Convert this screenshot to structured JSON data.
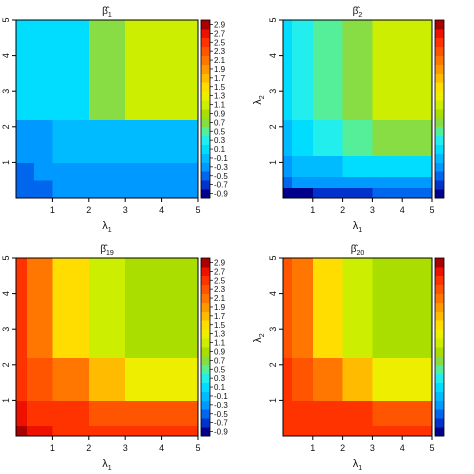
{
  "colorbar": {
    "colors": [
      "#00008b",
      "#0033cc",
      "#0066ee",
      "#0099ff",
      "#00bbff",
      "#00ddff",
      "#22eeee",
      "#55ee99",
      "#88dd44",
      "#aadd00",
      "#ccee00",
      "#eeee00",
      "#ffdd00",
      "#ffbb00",
      "#ff9900",
      "#ff7700",
      "#ff5500",
      "#ff3300",
      "#ee1100",
      "#aa0000"
    ],
    "tick_labels": [
      "-0.9",
      "-0.7",
      "-0.5",
      "-0.3",
      "-0.1",
      "0.1",
      "0.3",
      "0.5",
      "0.7",
      "0.9",
      "1.1",
      "1.3",
      "1.5",
      "1.7",
      "1.9",
      "2.1",
      "2.3",
      "2.5",
      "2.7",
      "2.9"
    ],
    "range": [
      -1.0,
      3.0
    ]
  },
  "chart_data": [
    {
      "type": "heatmap",
      "title_base": "β̂",
      "title_sub": "1",
      "xlabel_base": "λ",
      "xlabel_sub": "1",
      "ylabel_base": "",
      "ylabel_sub": "",
      "x_ticks": [
        "1",
        "2",
        "3",
        "4",
        "5"
      ],
      "y_ticks": [
        "1",
        "2",
        "3",
        "4",
        "5"
      ],
      "xlim": [
        0,
        5
      ],
      "ylim": [
        0,
        5
      ],
      "field": {
        "x_breaks": [
          0.5,
          1.0,
          2.0,
          3.0
        ],
        "y_breaks": [
          0.5,
          1.0,
          2.2
        ],
        "values": [
          [
            -0.5,
            -0.5,
            -0.4,
            -0.35,
            -0.3
          ],
          [
            -0.45,
            -0.4,
            -0.35,
            -0.3,
            -0.25
          ],
          [
            -0.3,
            -0.25,
            -0.2,
            -0.15,
            -0.1
          ],
          [
            0.0,
            0.05,
            0.1,
            0.6,
            1.0
          ]
        ]
      },
      "show_colorbar": true,
      "colorbar_labels": true
    },
    {
      "type": "heatmap",
      "title_base": "β̂",
      "title_sub": "2",
      "xlabel_base": "λ",
      "xlabel_sub": "1",
      "ylabel_base": "λ",
      "ylabel_sub": "2",
      "x_ticks": [
        "1",
        "2",
        "3",
        "4",
        "5"
      ],
      "y_ticks": [
        "1",
        "2",
        "3",
        "4",
        "5"
      ],
      "xlim": [
        0,
        5
      ],
      "ylim": [
        0,
        5
      ],
      "field": {
        "x_breaks": [
          0.3,
          1.0,
          2.0,
          3.0
        ],
        "y_breaks": [
          0.3,
          0.6,
          1.2,
          2.2
        ],
        "values": [
          [
            -0.9,
            -0.8,
            -0.7,
            -0.7,
            -0.6
          ],
          [
            -0.5,
            -0.4,
            -0.35,
            -0.3,
            -0.3
          ],
          [
            -0.3,
            -0.2,
            -0.1,
            0.0,
            0.05
          ],
          [
            -0.2,
            0.0,
            0.2,
            0.4,
            0.6
          ],
          [
            0.1,
            0.3,
            0.5,
            0.7,
            1.0
          ]
        ]
      },
      "show_colorbar": true,
      "colorbar_labels": false
    },
    {
      "type": "heatmap",
      "title_base": "β̂",
      "title_sub": "19",
      "xlabel_base": "λ",
      "xlabel_sub": "1",
      "ylabel_base": "",
      "ylabel_sub": "",
      "x_ticks": [
        "1",
        "2",
        "3",
        "4",
        "5"
      ],
      "y_ticks": [
        "1",
        "2",
        "3",
        "4",
        "5"
      ],
      "xlim": [
        0,
        5
      ],
      "ylim": [
        0,
        5
      ],
      "field": {
        "x_breaks": [
          0.3,
          1.0,
          2.0,
          3.0
        ],
        "y_breaks": [
          0.3,
          1.0,
          2.2
        ],
        "values": [
          [
            2.9,
            2.6,
            2.5,
            2.5,
            2.5
          ],
          [
            2.6,
            2.5,
            2.4,
            2.3,
            2.3
          ],
          [
            2.5,
            2.3,
            2.0,
            1.6,
            1.3
          ],
          [
            2.4,
            2.1,
            1.5,
            1.0,
            0.9
          ]
        ]
      },
      "show_colorbar": true,
      "colorbar_labels": true
    },
    {
      "type": "heatmap",
      "title_base": "β̂",
      "title_sub": "20",
      "xlabel_base": "λ",
      "xlabel_sub": "1",
      "ylabel_base": "λ",
      "ylabel_sub": "2",
      "x_ticks": [
        "1",
        "2",
        "3",
        "4",
        "5"
      ],
      "y_ticks": [
        "1",
        "2",
        "3",
        "4",
        "5"
      ],
      "xlim": [
        0,
        5
      ],
      "ylim": [
        0,
        5
      ],
      "field": {
        "x_breaks": [
          0.3,
          1.0,
          2.0,
          3.0
        ],
        "y_breaks": [
          0.3,
          1.0,
          2.2
        ],
        "values": [
          [
            2.5,
            2.5,
            2.5,
            2.5,
            2.5
          ],
          [
            2.5,
            2.45,
            2.4,
            2.4,
            2.35
          ],
          [
            2.4,
            2.3,
            2.0,
            1.6,
            1.3
          ],
          [
            2.3,
            2.1,
            1.5,
            1.0,
            0.9
          ]
        ]
      },
      "show_colorbar": true,
      "colorbar_labels": false
    }
  ]
}
